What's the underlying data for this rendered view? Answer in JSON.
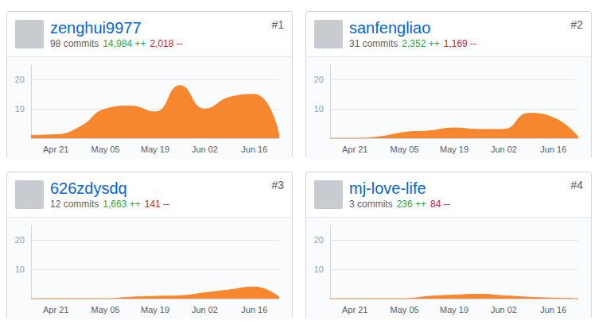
{
  "chart_data": [
    {
      "type": "area",
      "title": "zenghui9977",
      "subtitle": "98 commits",
      "annotations": [
        {
          "text": "#1"
        },
        {
          "text": "14,984 ++",
          "color": "#28a745"
        },
        {
          "text": "2,018 --",
          "color": "#cb2431"
        }
      ],
      "categories": [
        null,
        "Apr 21",
        null,
        "May 05",
        null,
        "May 19",
        null,
        "Jun 02",
        null,
        "Jun 16",
        null
      ],
      "values": [
        1,
        1.2,
        4,
        10,
        11,
        9,
        18,
        10,
        14,
        15,
        1
      ],
      "color": "#f6872f",
      "ylim": [
        0,
        25
      ],
      "yticks": [
        10,
        20
      ],
      "grid": true
    },
    {
      "type": "area",
      "title": "sanfengliao",
      "subtitle": "31 commits",
      "annotations": [
        {
          "text": "#2"
        },
        {
          "text": "2,352 ++",
          "color": "#28a745"
        },
        {
          "text": "1,169 --",
          "color": "#cb2431"
        }
      ],
      "categories": [
        null,
        "Apr 21",
        null,
        "May 05",
        null,
        "May 19",
        null,
        "Jun 02",
        null,
        "Jun 16",
        null
      ],
      "values": [
        0,
        0,
        0.5,
        2,
        2.5,
        3.5,
        3,
        3,
        8.5,
        7,
        0.5
      ],
      "color": "#f6872f",
      "ylim": [
        0,
        25
      ],
      "yticks": [
        10,
        20
      ],
      "grid": true
    },
    {
      "type": "area",
      "title": "626zdysdq",
      "subtitle": "12 commits",
      "annotations": [
        {
          "text": "#3"
        },
        {
          "text": "1,663 ++",
          "color": "#28a745"
        },
        {
          "text": "141 --",
          "color": "#cb2431"
        }
      ],
      "categories": [
        null,
        "Apr 21",
        null,
        "May 05",
        null,
        "May 19",
        null,
        "Jun 02",
        null,
        "Jun 16",
        null
      ],
      "values": [
        0,
        0,
        0,
        0,
        0.5,
        0.8,
        1,
        2,
        3,
        4,
        0.5
      ],
      "color": "#f6872f",
      "ylim": [
        0,
        25
      ],
      "yticks": [
        10,
        20
      ],
      "grid": true
    },
    {
      "type": "area",
      "title": "mj-love-life",
      "subtitle": "3 commits",
      "annotations": [
        {
          "text": "#4"
        },
        {
          "text": "236 ++",
          "color": "#28a745"
        },
        {
          "text": "84 --",
          "color": "#cb2431"
        }
      ],
      "categories": [
        null,
        "Apr 21",
        null,
        "May 05",
        null,
        "May 19",
        null,
        "Jun 02",
        null,
        "Jun 16",
        null
      ],
      "values": [
        0,
        0,
        0,
        0,
        0.8,
        1.2,
        1.5,
        1,
        0.5,
        0.2,
        0
      ],
      "color": "#f6872f",
      "ylim": [
        0,
        25
      ],
      "yticks": [
        10,
        20
      ],
      "grid": true
    }
  ]
}
